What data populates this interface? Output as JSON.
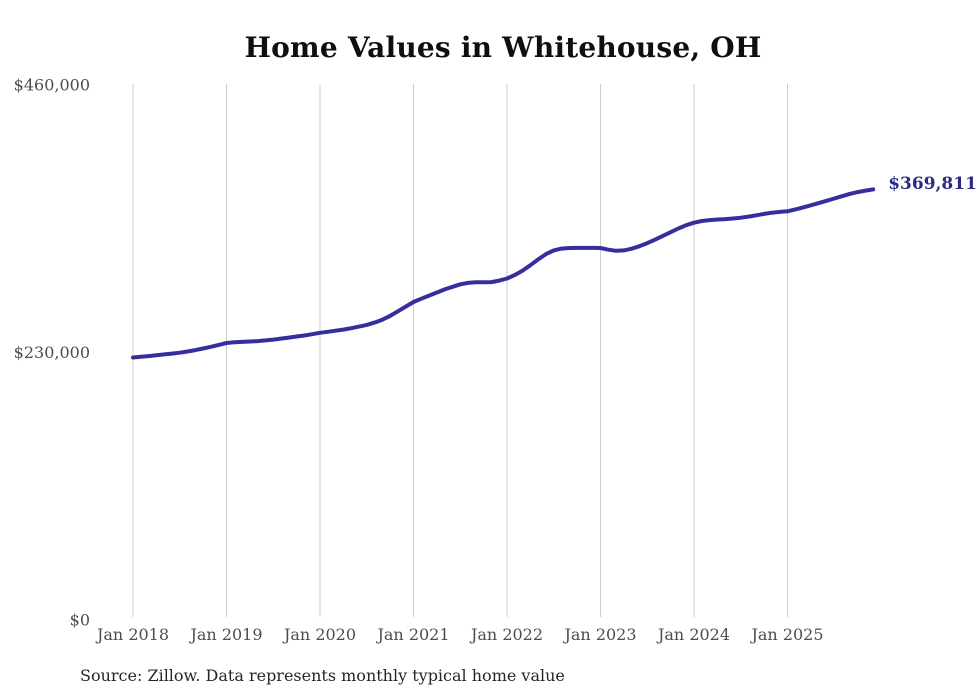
{
  "chart": {
    "title": "Home Values in Whitehouse, OH",
    "end_label": "$369,811",
    "source": "Source: Zillow. Data represents monthly typical home value",
    "colors": {
      "line": "#362e9d",
      "end_label": "#2d2a87",
      "grid": "#cccccc",
      "tick_text": "#4d4d4d",
      "title_text": "#0f0f0f",
      "source_text": "#262626",
      "background": "#ffffff"
    }
  },
  "chart_data": {
    "type": "line",
    "title": "Home Values in Whitehouse, OH",
    "xlabel": "",
    "ylabel": "",
    "x_start_month": "2018-01",
    "x_end_month": "2025-12",
    "points_per_year": 12,
    "x_tick_labels": [
      "Jan 2018",
      "Jan 2019",
      "Jan 2020",
      "Jan 2021",
      "Jan 2022",
      "Jan 2023",
      "Jan 2024",
      "Jan 2025"
    ],
    "y_ticks": [
      0,
      230000,
      460000
    ],
    "y_tick_labels": [
      "$0",
      "$230,000",
      "$460,000"
    ],
    "ylim": [
      0,
      460000
    ],
    "grid": "vertical-only",
    "legend": "none",
    "annotation": "$369,811",
    "series": [
      {
        "name": "Monthly typical home value",
        "values": [
          225300,
          225900,
          226500,
          227200,
          227900,
          228600,
          229400,
          230400,
          231600,
          233000,
          234500,
          236100,
          237700,
          238300,
          238700,
          239000,
          239400,
          240000,
          240700,
          241500,
          242400,
          243300,
          244200,
          245300,
          246500,
          247400,
          248300,
          249300,
          250500,
          251800,
          253300,
          255300,
          257800,
          261000,
          265000,
          269000,
          273000,
          275800,
          278500,
          281200,
          283800,
          286100,
          288200,
          289400,
          289900,
          289900,
          290100,
          291400,
          293200,
          296200,
          300000,
          304600,
          309600,
          314200,
          317400,
          318900,
          319400,
          319500,
          319500,
          319500,
          319400,
          318000,
          317000,
          317400,
          318800,
          321000,
          323600,
          326600,
          329800,
          333000,
          336200,
          339000,
          341200,
          342600,
          343400,
          343900,
          344300,
          344800,
          345500,
          346400,
          347500,
          348700,
          349800,
          350500,
          351000,
          352600,
          354300,
          356100,
          358000,
          360000,
          362000,
          364000,
          365900,
          367500,
          368800,
          369811
        ]
      }
    ]
  }
}
